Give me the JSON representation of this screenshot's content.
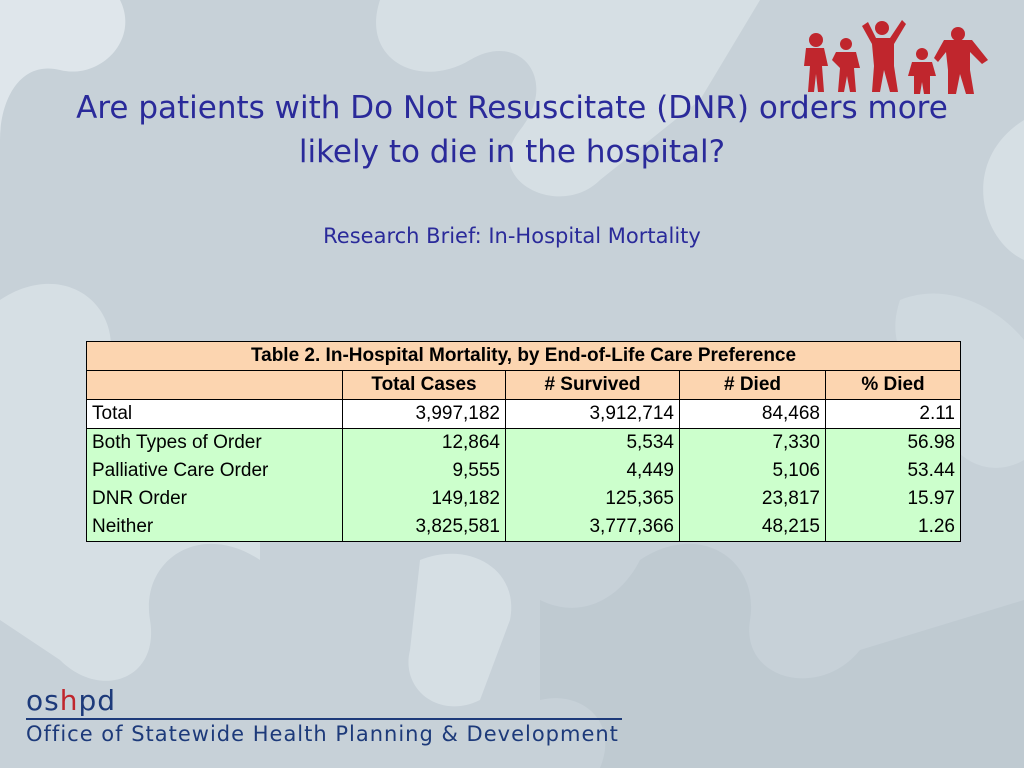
{
  "slide": {
    "title": "Are patients with Do Not Resuscitate (DNR) orders more likely to die in the hospital?",
    "subtitle": "Research Brief: In-Hospital Mortality"
  },
  "table": {
    "caption": "Table 2. In-Hospital Mortality, by End-of-Life Care Preference",
    "columns": [
      "",
      "Total Cases",
      "# Survived",
      "# Died",
      "% Died"
    ],
    "total_row": [
      "Total",
      "3,997,182",
      "3,912,714",
      "84,468",
      "2.11"
    ],
    "rows": [
      [
        "Both Types of Order",
        "12,864",
        "5,534",
        "7,330",
        "56.98"
      ],
      [
        "Palliative Care Order",
        "9,555",
        "4,449",
        "5,106",
        "53.44"
      ],
      [
        "DNR Order",
        "149,182",
        "125,365",
        "23,817",
        "15.97"
      ],
      [
        "Neither",
        "3,825,581",
        "3,777,366",
        "48,215",
        "1.26"
      ]
    ]
  },
  "footer": {
    "logo_os": "os",
    "logo_h": "h",
    "logo_pd": "pd",
    "org_name": "Office of Statewide Health Planning & Development"
  },
  "colors": {
    "title": "#2a2a9a",
    "header_fill": "#fcd5b0",
    "body_fill": "#ccffcc",
    "logo_red": "#c0262d",
    "logo_blue": "#1d3a7a"
  },
  "icons": [
    "puzzle-background",
    "family-people-icon"
  ]
}
